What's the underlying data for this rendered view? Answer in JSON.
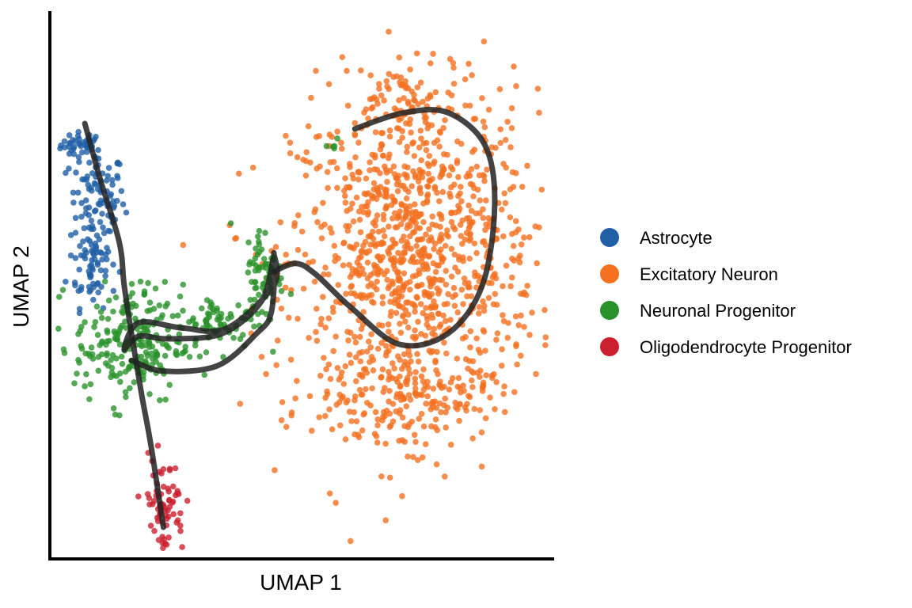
{
  "chart_data": {
    "type": "scatter",
    "title": "",
    "xlabel": "UMAP 1",
    "ylabel": "UMAP 2",
    "xlim": [
      0,
      10
    ],
    "ylim": [
      0,
      10
    ],
    "ticks": "none",
    "grid": false,
    "legend_position": "right",
    "series": [
      {
        "name": "Astrocyte",
        "color": "#1f5fa6",
        "clusters": [
          {
            "cx": 0.55,
            "cy": 7.6,
            "sx": 0.22,
            "sy": 0.12,
            "n": 40
          },
          {
            "cx": 0.85,
            "cy": 6.6,
            "sx": 0.28,
            "sy": 0.45,
            "n": 90
          },
          {
            "cx": 0.75,
            "cy": 5.4,
            "sx": 0.25,
            "sy": 0.4,
            "n": 70
          }
        ]
      },
      {
        "name": "Excitatory Neuron",
        "color": "#f4711f",
        "clusters": [
          {
            "cx": 7.3,
            "cy": 5.5,
            "sx": 1.25,
            "sy": 1.55,
            "n": 1100
          },
          {
            "cx": 7.2,
            "cy": 8.4,
            "sx": 0.55,
            "sy": 0.35,
            "n": 60
          },
          {
            "cx": 7.0,
            "cy": 2.9,
            "sx": 0.9,
            "sy": 0.35,
            "n": 140
          }
        ]
      },
      {
        "name": "Neuronal Progenitor",
        "color": "#2a922a",
        "clusters": [
          {
            "cx": 1.5,
            "cy": 3.9,
            "sx": 0.55,
            "sy": 0.55,
            "n": 220
          },
          {
            "cx": 3.3,
            "cy": 4.3,
            "sx": 0.4,
            "sy": 0.25,
            "n": 70
          },
          {
            "cx": 4.25,
            "cy": 5.2,
            "sx": 0.2,
            "sy": 0.45,
            "n": 70
          },
          {
            "cx": 5.6,
            "cy": 7.6,
            "sx": 0.06,
            "sy": 0.12,
            "n": 5
          }
        ]
      },
      {
        "name": "Oligodendrocyte Progenitor",
        "color": "#cc1f2e",
        "clusters": [
          {
            "cx": 2.2,
            "cy": 0.9,
            "sx": 0.22,
            "sy": 0.45,
            "n": 75
          }
        ]
      }
    ],
    "trajectories": [
      {
        "name": "trajectory-astro-to-opc",
        "color": "#222222",
        "x": [
          0.6,
          0.9,
          1.3,
          1.4,
          1.55,
          1.75,
          1.95,
          2.2
        ],
        "y": [
          8.0,
          7.0,
          5.8,
          5.0,
          4.1,
          3.0,
          2.0,
          0.5
        ]
      },
      {
        "name": "trajectory-progenitor-loop",
        "color": "#222222",
        "x": [
          1.55,
          2.2,
          3.3,
          4.1,
          4.4,
          4.45,
          4.2,
          3.4,
          2.3,
          1.7,
          1.4,
          1.7,
          2.6,
          3.5,
          4.45,
          4.45
        ],
        "y": [
          3.6,
          3.4,
          3.5,
          4.1,
          4.5,
          5.5,
          4.7,
          4.1,
          4.0,
          4.05,
          3.8,
          4.3,
          4.2,
          4.2,
          5.0,
          5.6
        ]
      },
      {
        "name": "trajectory-to-excitatory",
        "color": "#222222",
        "x": [
          4.45,
          4.9,
          5.3,
          6.0,
          7.0,
          8.0,
          8.7,
          8.95,
          8.75,
          8.0,
          7.1,
          6.1
        ],
        "y": [
          5.25,
          5.4,
          5.2,
          4.6,
          3.9,
          4.1,
          5.0,
          6.5,
          7.6,
          8.2,
          8.2,
          7.9
        ]
      }
    ]
  }
}
